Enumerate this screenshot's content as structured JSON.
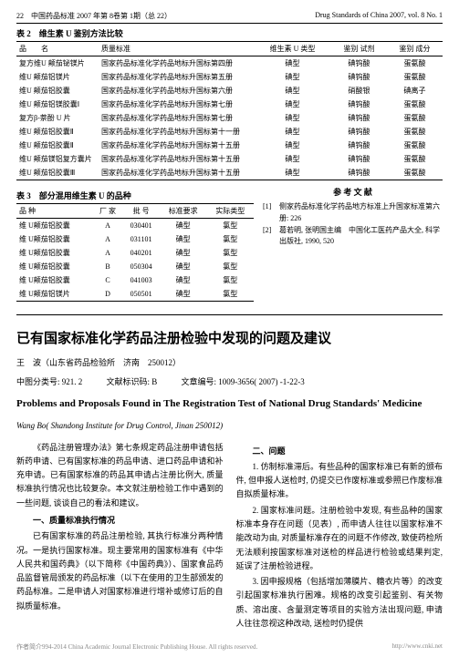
{
  "header": {
    "left": "22　中国药品标准 2007 年第 8卷第 1期（总 22）",
    "right": "Drug Standards of China 2007, vol. 8 No. 1"
  },
  "table2": {
    "caption": "表 2　维生素 U 鉴别方法比较",
    "head": [
      "品　　名",
      "质量标准",
      "维生素 U 类型",
      "鉴别 试剂",
      "鉴别 成分"
    ],
    "rows": [
      [
        "复方维U 颠茄铋镁片",
        "国家药品标准化学药品地标升国标第四册",
        "碘型",
        "碘钨酸",
        "蛋氨酸"
      ],
      [
        "维U 颠茄铝镁片",
        "国家药品标准化学药品地标升国标第五册",
        "碘型",
        "碘钨酸",
        "蛋氨酸"
      ],
      [
        "维U 颠茄铝胶囊",
        "国家药品标准化学药品地标升国标第六册",
        "碘型",
        "硝酸银",
        "碘离子"
      ],
      [
        "维U 颠茄铝镁胶囊Ⅰ",
        "国家药品标准化学药品地标升国标第七册",
        "碘型",
        "碘钨酸",
        "蛋氨酸"
      ],
      [
        "复方β-萘酚 U 片",
        "国家药品标准化学药品地标升国标第七册",
        "碘型",
        "碘钨酸",
        "蛋氨酸"
      ],
      [
        "维U 颠茄铝胶囊Ⅱ",
        "国家药品标准化学药品地标升国标第十一册",
        "碘型",
        "碘钨酸",
        "蛋氨酸"
      ],
      [
        "维U 颠茄铝胶囊Ⅱ",
        "国家药品标准化学药品地标升国标第十五册",
        "碘型",
        "碘钨酸",
        "蛋氨酸"
      ],
      [
        "维U 颠茄镁铝复方囊片",
        "国家药品标准化学药品地标升国标第十五册",
        "碘型",
        "碘钨酸",
        "蛋氨酸"
      ],
      [
        "维U 颠茄铝胶囊Ⅲ",
        "国家药品标准化学药品地标升国标第十五册",
        "碘型",
        "碘钨酸",
        "蛋氨酸"
      ]
    ]
  },
  "table3": {
    "caption": "表 3　部分混用维生素 U 的品种",
    "head": [
      "品 种",
      "厂 家",
      "批 号",
      "标准要求",
      "实际类型"
    ],
    "rows": [
      [
        "维 U颠茄铝胶囊",
        "A",
        "030401",
        "碘型",
        "氯型"
      ],
      [
        "维 U颠茄铝胶囊",
        "A",
        "031101",
        "碘型",
        "氯型"
      ],
      [
        "维 U颠茄铝胶囊",
        "A",
        "040201",
        "碘型",
        "氯型"
      ],
      [
        "维 U颠茄铝胶囊",
        "B",
        "050304",
        "碘型",
        "氯型"
      ],
      [
        "维 U颠茄铝胶囊",
        "C",
        "041003",
        "碘型",
        "氯型"
      ],
      [
        "维 U颠茄铝镁片",
        "D",
        "050501",
        "碘型",
        "氯型"
      ]
    ]
  },
  "refs": {
    "title": "参 考 文 献",
    "items": [
      {
        "n": "[1]",
        "t": "侧家药品标准化学药品地方标准上升国家标准第六册: 226"
      },
      {
        "n": "[2]",
        "t": "葛若明, 张明国主编　中国化工医药产品大全, 科学出版社, 1990, 520"
      }
    ]
  },
  "article": {
    "title_cn": "已有国家标准化学药品注册检验中发现的问题及建议",
    "author_cn": "王　波（山东省药品检验所　济南　250012）",
    "meta": {
      "cls": "中图分类号: 921. 2",
      "mark": "文献标识码: B",
      "no": "文章编号: 1009-3656( 2007) -1-22-3"
    },
    "title_en": "Problems and Proposals Found in The Registration Test of National Drug Standards' Medicine",
    "author_en": "Wang Bo( Shandong Institute for Drug Control, Jinan 250012)"
  },
  "body": {
    "l": {
      "p1": "《药品注册管理办法》第七条规定药品注册申请包括新药申请、已有国家标准的药品申请、进口药品申请和补充申请。已有国家标准的药品其申请占注册比例大, 质量标准执行情况也比较复杂。本文就注册检验工作中遇到的一些问题, 谈谈自己的看法和建议。",
      "h1": "一、质量标准执行情况",
      "p2": "已有国家标准的药品注册检验, 其执行标准分两种情况。一是执行国家标准。现主要常用的国家标准有《中华人民共和国药典》（以下简称《中国药典》）、国家食品药品监督管局颁发的药品标准（以下在使用的卫生部颁发的药品标准。二是申请人对国家标准进行增补或修订后的自拟质量标准。"
    },
    "r": {
      "h1": "二、问题",
      "p1": "1. 仿制标准滞后。有些品种的国家标准已有新的颁布件, 但申报人送检时, 仍提交已作废标准或参照已作废标准自拟质量标准。",
      "p2": "2. 国家标准问题。注册检验中发现, 有些品种的国家标准本身存在问题（见表）, 而申请人往往以国家标准不能改动为由, 对质量标准存在的问题不作修改, 致使药检所无法顺利按国家标准对送检的样品进行检验或结果判定, 延误了注册检验进程。",
      "p3": "3. 因申报规格（包括增加薄膜片、糖衣片等）的改变引起国家标准执行困难。规格的改变引起鉴别、有关物质、溶出度、含量测定等项目的实验方法出现问题, 申请人往往忽视这种改动, 送检时仍提供"
    }
  },
  "footer": {
    "l": "作者简介994-2014 China Academic Journal Electronic Publishing House. All rights reserved.",
    "r": "http://www.cnki.net"
  }
}
